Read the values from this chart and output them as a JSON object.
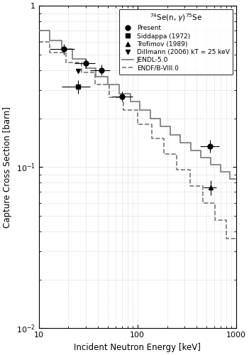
{
  "title": "$^{74}$Se(n, $\\gamma$)$^{75}$Se",
  "xlabel": "Incident Neutron Energy [keV]",
  "ylabel": "Capture Cross Section [barn]",
  "xlim": [
    10,
    1000
  ],
  "ylim": [
    0.01,
    1.0
  ],
  "present_data": [
    [
      18,
      0.54
    ],
    [
      30,
      0.44
    ],
    [
      43,
      0.4
    ],
    [
      70,
      0.275
    ],
    [
      540,
      0.135
    ]
  ],
  "present_xerr_lo": [
    5,
    7,
    10,
    15,
    110
  ],
  "present_xerr_hi": [
    5,
    7,
    10,
    20,
    130
  ],
  "present_yerr_lo": [
    0.04,
    0.03,
    0.03,
    0.02,
    0.012
  ],
  "present_yerr_hi": [
    0.04,
    0.03,
    0.03,
    0.02,
    0.012
  ],
  "siddappa_data": [
    [
      25,
      0.315
    ]
  ],
  "siddappa_xerr_lo": [
    8
  ],
  "siddappa_xerr_hi": [
    8
  ],
  "siddappa_yerr_lo": [
    0.03
  ],
  "siddappa_yerr_hi": [
    0.03
  ],
  "trofimov_data": [
    [
      550,
      0.075
    ]
  ],
  "trofimov_xerr_lo": [
    80
  ],
  "trofimov_xerr_hi": [
    80
  ],
  "trofimov_yerr_lo": [
    0.008
  ],
  "trofimov_yerr_hi": [
    0.008
  ],
  "dillmann_data": [
    [
      25,
      0.395
    ]
  ],
  "jendl_x": [
    10,
    13,
    13,
    17,
    17,
    22,
    22,
    30,
    30,
    38,
    38,
    50,
    50,
    65,
    65,
    85,
    85,
    105,
    105,
    135,
    135,
    170,
    170,
    215,
    215,
    270,
    270,
    345,
    345,
    440,
    440,
    550,
    550,
    700,
    700,
    870,
    870,
    1000
  ],
  "jendl_y": [
    0.7,
    0.7,
    0.61,
    0.61,
    0.54,
    0.54,
    0.47,
    0.47,
    0.41,
    0.41,
    0.365,
    0.365,
    0.325,
    0.325,
    0.285,
    0.285,
    0.255,
    0.255,
    0.225,
    0.225,
    0.2,
    0.2,
    0.178,
    0.178,
    0.158,
    0.158,
    0.142,
    0.142,
    0.127,
    0.127,
    0.114,
    0.114,
    0.103,
    0.103,
    0.093,
    0.093,
    0.084,
    0.084
  ],
  "endf_x": [
    10,
    13,
    13,
    19,
    19,
    27,
    27,
    37,
    37,
    52,
    52,
    72,
    72,
    100,
    100,
    140,
    140,
    185,
    185,
    250,
    250,
    340,
    340,
    460,
    460,
    610,
    610,
    800,
    800,
    1000
  ],
  "endf_y": [
    0.595,
    0.595,
    0.515,
    0.515,
    0.445,
    0.445,
    0.385,
    0.385,
    0.325,
    0.325,
    0.27,
    0.27,
    0.225,
    0.225,
    0.185,
    0.185,
    0.15,
    0.15,
    0.12,
    0.12,
    0.096,
    0.096,
    0.076,
    0.076,
    0.06,
    0.06,
    0.047,
    0.047,
    0.036,
    0.036
  ],
  "line_color": "#777777",
  "line_width": 1.2,
  "marker_color": "black",
  "marker_size": 5,
  "grid_color": "#bbbbbb",
  "bg_color": "white"
}
